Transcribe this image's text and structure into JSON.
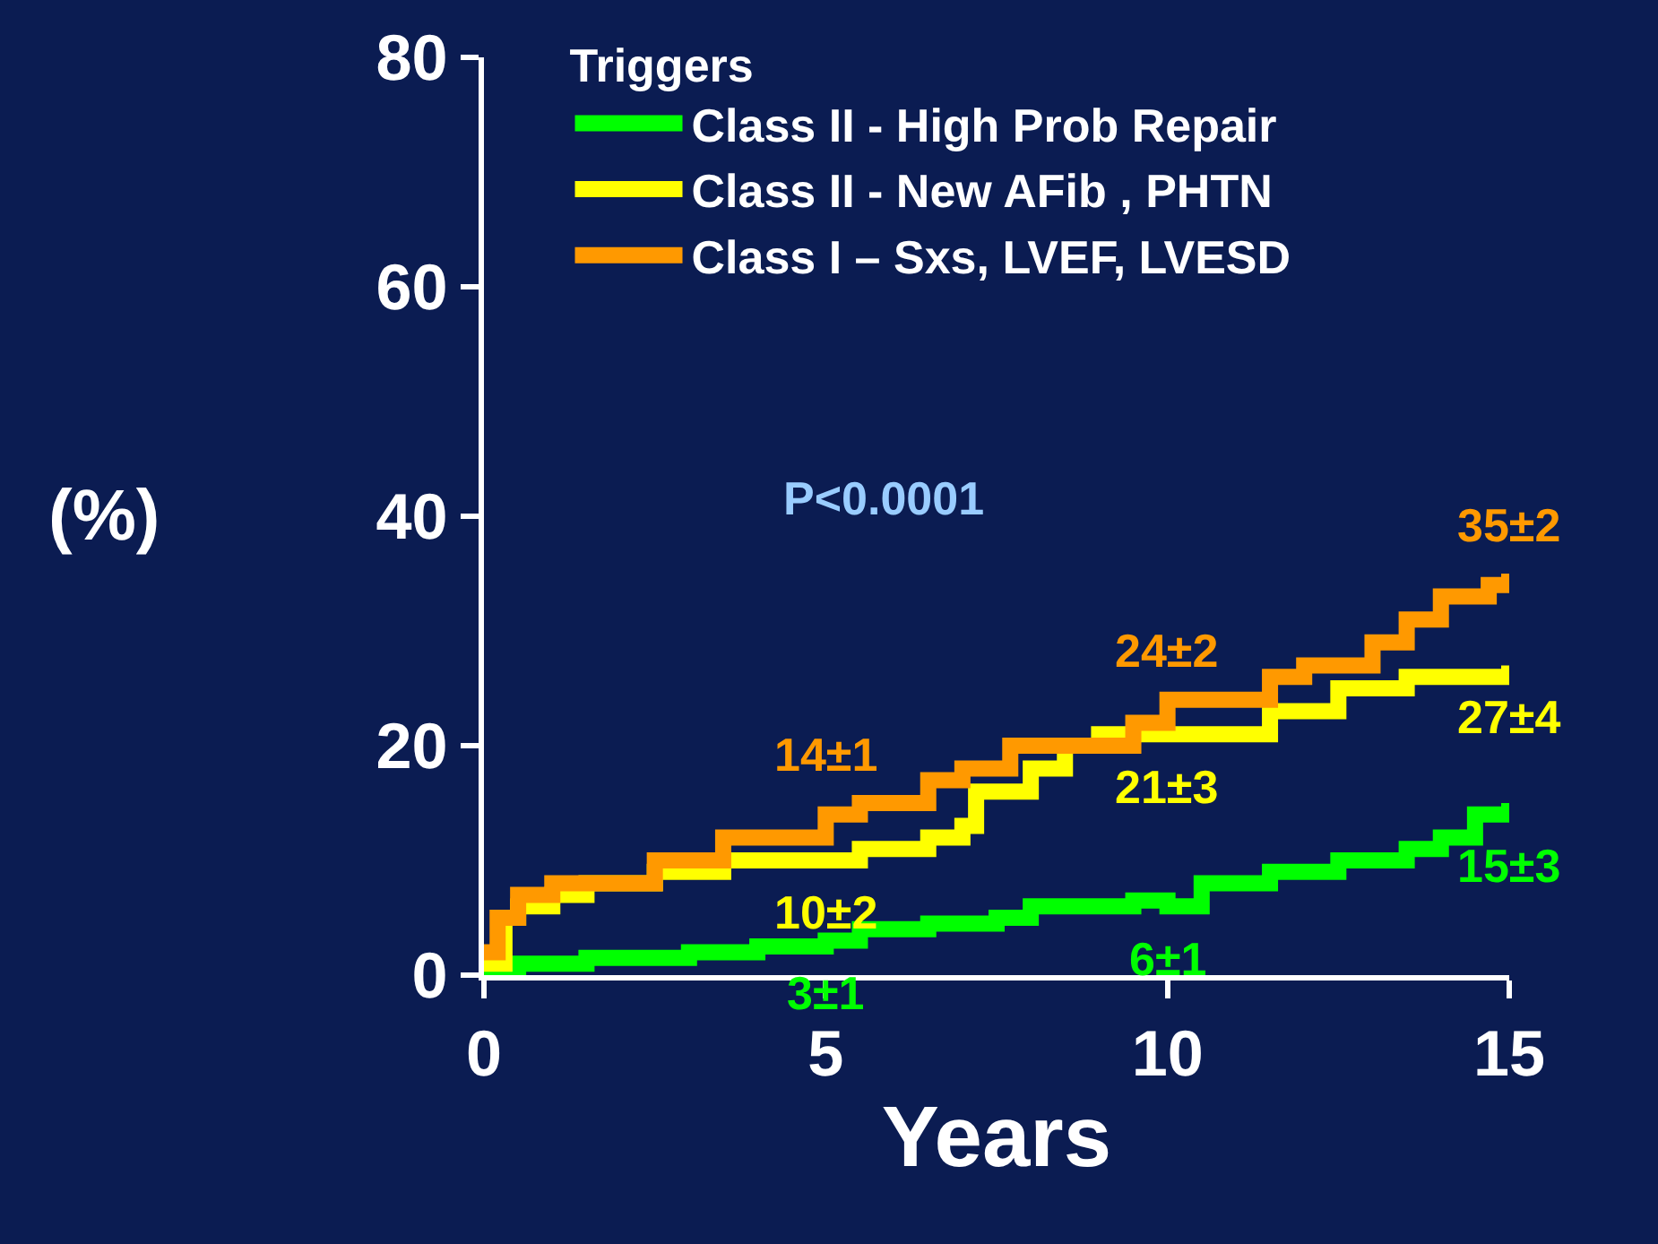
{
  "chart_data": {
    "type": "step",
    "xlabel": "Years",
    "ylabel": "(%)",
    "legend_title": "Triggers",
    "legend": "top left",
    "grid": false,
    "marker": "none",
    "line_style": "solid",
    "xlim": [
      0,
      15
    ],
    "xticks": [
      0,
      5,
      10,
      15
    ],
    "ylim": [
      0,
      80
    ],
    "yticks": [
      0,
      20,
      40,
      60,
      80
    ],
    "series": [
      {
        "name": "Class II - High Prob Repair",
        "color": "#00ff00",
        "x": [
          0,
          0.5,
          1.5,
          3,
          4,
          5,
          5.5,
          6.5,
          7.5,
          8,
          9.5,
          10,
          10.5,
          11.5,
          12.5,
          13.5,
          14,
          14.5,
          15
        ],
        "values": [
          0.5,
          1,
          1.5,
          2,
          2.5,
          3,
          4,
          4.5,
          5,
          6,
          6.5,
          6,
          8,
          9,
          10,
          11,
          12,
          14,
          15
        ],
        "value_labels": [
          null,
          null,
          null,
          null,
          null,
          "3±1",
          null,
          null,
          null,
          null,
          null,
          "6±1",
          null,
          null,
          null,
          null,
          null,
          null,
          "15±3"
        ]
      },
      {
        "name": "Class II - New AFib , PHTN",
        "color": "#ffff00",
        "x": [
          0,
          0.3,
          0.5,
          1,
          1.5,
          2.5,
          3.5,
          5,
          5.5,
          6.5,
          7,
          7.2,
          8,
          8.5,
          9,
          10,
          11.5,
          12.5,
          13.5,
          15
        ],
        "values": [
          1,
          5,
          6,
          7,
          8,
          9,
          10,
          10,
          11,
          12,
          13,
          16,
          18,
          20,
          21,
          21,
          23,
          25,
          26,
          27
        ],
        "value_labels": [
          null,
          null,
          null,
          null,
          null,
          null,
          null,
          "10±2",
          null,
          null,
          null,
          null,
          null,
          null,
          null,
          "21±3",
          null,
          null,
          null,
          "27±4"
        ]
      },
      {
        "name": "Class I – Sxs, LVEF, LVESD",
        "color": "#ff9900",
        "x": [
          0,
          0.2,
          0.5,
          1,
          2.5,
          3.5,
          5,
          5.5,
          6.5,
          7,
          7.7,
          8.5,
          9.5,
          10,
          11.5,
          12,
          13,
          13.5,
          14,
          14.7,
          15
        ],
        "values": [
          2,
          5,
          7,
          8,
          10,
          12,
          14,
          15,
          17,
          18,
          20,
          20,
          22,
          24,
          26,
          27,
          29,
          31,
          33,
          34,
          35
        ],
        "value_labels": [
          null,
          null,
          null,
          null,
          null,
          null,
          "14±1",
          null,
          null,
          null,
          null,
          null,
          null,
          "24±2",
          null,
          null,
          null,
          null,
          null,
          null,
          "35±2"
        ]
      }
    ],
    "annotations": [
      "P<0.0001"
    ]
  }
}
